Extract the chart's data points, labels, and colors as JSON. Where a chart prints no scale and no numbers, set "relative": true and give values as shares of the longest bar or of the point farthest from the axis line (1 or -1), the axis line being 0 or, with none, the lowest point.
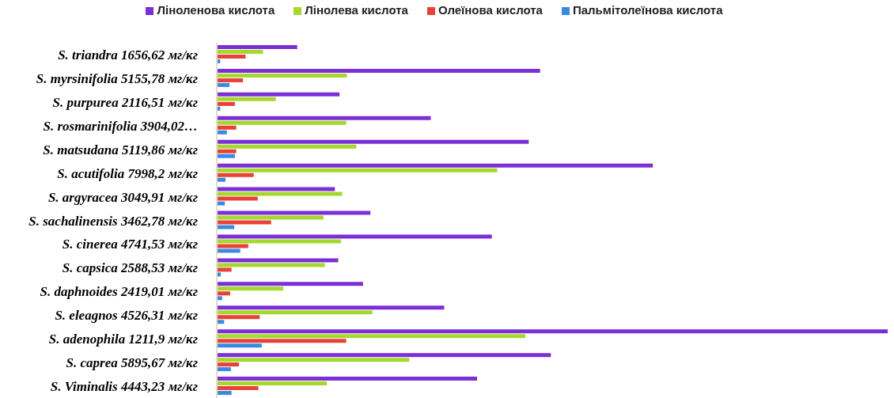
{
  "chart_data": {
    "type": "bar",
    "orientation": "horizontal",
    "relative": true,
    "legend": "top",
    "categories": [
      "S. triandra 1656,62 мг/кг",
      "S. myrsinifolia 5155,78 мг/кг",
      "S. purpurea 2116,51 мг/кг",
      "S. rosmarinifolia  3904,02…",
      "S. matsudana 5119,86 мг/кг",
      "S. acutifolia  7998,2 мг/кг",
      "S. argyracea 3049,91 мг/кг",
      "S. sachalinensis 3462,78 мг/кг",
      "S. cinerea 4741,53 мг/кг",
      "S. capsica 2588,53 мг/кг",
      "S. daphnoides 2419,01 мг/кг",
      "S. eleagnos 4526,31 мг/кг",
      "S. adenophila 1211,9 мг/кг",
      "S. caprea 5895,67 мг/кг",
      "S. Viminalis 4443,23 мг/кг"
    ],
    "series": [
      {
        "name": "Ліноленова кислота",
        "color": "#7b2fd6",
        "values": [
          0.12,
          0.482,
          0.183,
          0.319,
          0.465,
          0.65,
          0.176,
          0.229,
          0.41,
          0.181,
          0.218,
          0.339,
          1.0,
          0.498,
          0.388
        ]
      },
      {
        "name": "Лінолева кислота",
        "color": "#a6d72c",
        "values": [
          0.069,
          0.194,
          0.088,
          0.193,
          0.208,
          0.418,
          0.187,
          0.159,
          0.185,
          0.161,
          0.099,
          0.232,
          0.46,
          0.287,
          0.164
        ]
      },
      {
        "name": "Олеїнова кислота",
        "color": "#e8413a",
        "values": [
          0.043,
          0.039,
          0.027,
          0.029,
          0.029,
          0.055,
          0.061,
          0.081,
          0.047,
          0.022,
          0.02,
          0.064,
          0.193,
          0.033,
          0.062
        ]
      },
      {
        "name": "Пальмітолеїнова кислота",
        "color": "#3a8ae0",
        "values": [
          0.005,
          0.019,
          0.005,
          0.015,
          0.027,
          0.013,
          0.012,
          0.026,
          0.035,
          0.006,
          0.008,
          0.011,
          0.067,
          0.021,
          0.022
        ]
      }
    ]
  }
}
